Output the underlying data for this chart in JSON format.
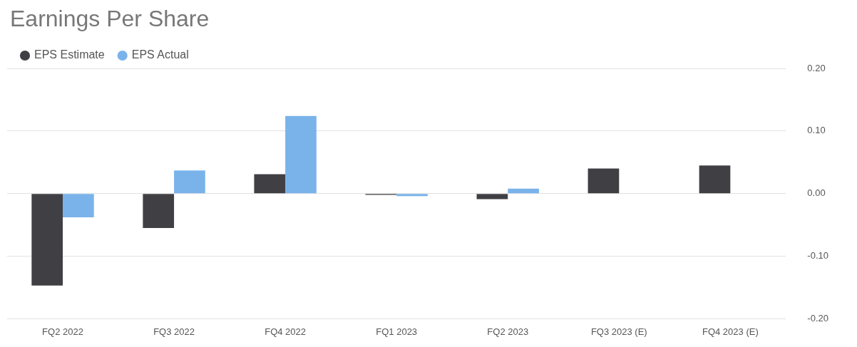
{
  "chart_data": {
    "type": "bar",
    "title": "Earnings Per Share",
    "categories": [
      "FQ2 2022",
      "FQ3 2022",
      "FQ4 2022",
      "FQ1 2023",
      "FQ2 2023",
      "FQ3 2023 (E)",
      "FQ4 2023 (E)"
    ],
    "series": [
      {
        "name": "EPS Estimate",
        "color": "#404044",
        "values": [
          -0.147,
          -0.055,
          0.031,
          -0.002,
          -0.009,
          0.04,
          0.045
        ]
      },
      {
        "name": "EPS Actual",
        "color": "#7ab3ea",
        "values": [
          -0.038,
          0.037,
          0.124,
          -0.004,
          0.008,
          null,
          null
        ]
      }
    ],
    "ylim": [
      -0.2,
      0.2
    ],
    "yticks": [
      {
        "value": -0.2,
        "label": "-0.20"
      },
      {
        "value": -0.1,
        "label": "-0.10"
      },
      {
        "value": 0,
        "label": "0.00"
      },
      {
        "value": 0.1,
        "label": "0.10"
      },
      {
        "value": 0.2,
        "label": "0.20"
      }
    ],
    "grid": "y",
    "legend": "top left",
    "marker": "circle"
  }
}
